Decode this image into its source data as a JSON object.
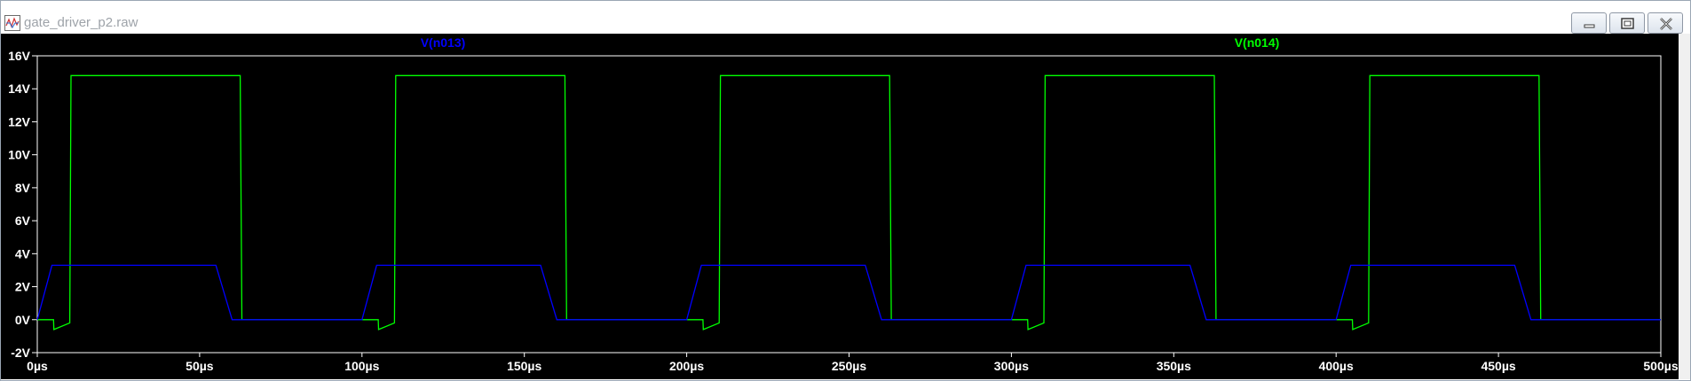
{
  "window": {
    "title": "gate_driver_p2.raw",
    "controls": {
      "minimize": "minimize-icon",
      "restore": "restore-icon",
      "close": "close-icon"
    }
  },
  "colors": {
    "background": "#000000",
    "frame": "#ffffff",
    "axis_text": "#ffffff",
    "series_n013": "#0000ff",
    "series_n014": "#00ff00"
  },
  "chart_data": {
    "type": "line",
    "title": "",
    "xlabel": "",
    "ylabel": "",
    "xlim": [
      0,
      500
    ],
    "ylim": [
      -2,
      16
    ],
    "grid": false,
    "x_unit": "µs",
    "x_ticks": [
      0,
      50,
      100,
      150,
      200,
      250,
      300,
      350,
      400,
      450,
      500
    ],
    "x_tick_labels": [
      "0µs",
      "50µs",
      "100µs",
      "150µs",
      "200µs",
      "250µs",
      "300µs",
      "350µs",
      "400µs",
      "450µs",
      "500µs"
    ],
    "y_ticks": [
      -2,
      0,
      2,
      4,
      6,
      8,
      10,
      12,
      14,
      16
    ],
    "y_tick_labels": [
      "-2V",
      "0V",
      "2V",
      "4V",
      "6V",
      "8V",
      "10V",
      "12V",
      "14V",
      "16V"
    ],
    "series": [
      {
        "name": "V(n013)",
        "color": "#0000ff",
        "x": [
          0,
          4.5,
          55,
          60,
          100,
          104.5,
          155,
          160,
          200,
          204.5,
          255,
          260,
          300,
          304.5,
          355,
          360,
          400,
          404.5,
          455,
          460,
          500
        ],
        "y": [
          0,
          3.3,
          3.3,
          0,
          0,
          3.3,
          3.3,
          0,
          0,
          3.3,
          3.3,
          0,
          0,
          3.3,
          3.3,
          0,
          0,
          3.3,
          3.3,
          0,
          0
        ]
      },
      {
        "name": "V(n014)",
        "color": "#00ff00",
        "x": [
          0,
          5,
          5.1,
          10,
          10.4,
          11,
          62.5,
          63,
          105,
          105.1,
          110,
          110.4,
          111,
          162.5,
          163,
          205,
          205.1,
          210,
          210.4,
          211,
          262.5,
          263,
          305,
          305.1,
          310,
          310.4,
          311,
          362.5,
          363,
          405,
          405.1,
          410,
          410.4,
          411,
          462.5,
          463,
          500
        ],
        "y": [
          0,
          0,
          -0.6,
          -0.2,
          14.8,
          14.8,
          14.8,
          0,
          0,
          -0.6,
          -0.2,
          14.8,
          14.8,
          14.8,
          0,
          0,
          -0.6,
          -0.2,
          14.8,
          14.8,
          14.8,
          0,
          0,
          -0.6,
          -0.2,
          14.8,
          14.8,
          14.8,
          0,
          0,
          -0.6,
          -0.2,
          14.8,
          14.8,
          14.8,
          0,
          0
        ]
      }
    ],
    "legend_placement": "top"
  }
}
